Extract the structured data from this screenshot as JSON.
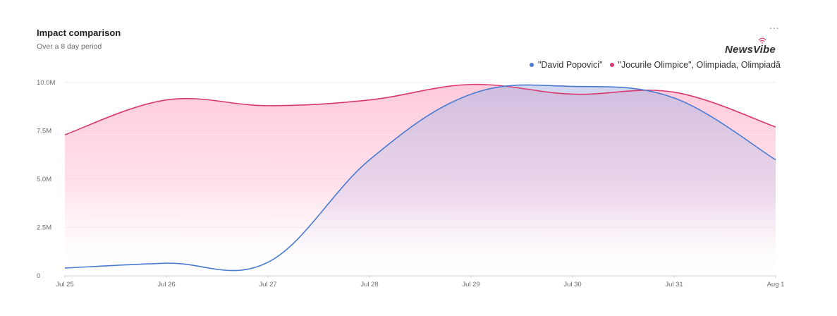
{
  "header": {
    "title": "Impact comparison",
    "subtitle": "Over a 8 day period",
    "more_label": "...",
    "logo_text": "NewsVibe"
  },
  "colors": {
    "series_1": "#4a7bd0",
    "series_2": "#d9386c"
  },
  "chart_data": {
    "type": "area",
    "title": "Impact comparison",
    "subtitle": "Over a 8 day period",
    "x": [
      "Jul 25",
      "Jul 26",
      "Jul 27",
      "Jul 28",
      "Jul 29",
      "Jul 30",
      "Jul 31",
      "Aug 1"
    ],
    "y_ticks": [
      "0",
      "2.5M",
      "5.0M",
      "7.5M",
      "10.0M"
    ],
    "ylim": [
      0,
      10000000
    ],
    "grid": true,
    "legend_position": "top-right",
    "series": [
      {
        "name": "\"David Popovici\"",
        "color": "#4a7bd0",
        "values": [
          400000,
          650000,
          700000,
          6000000,
          9400000,
          9800000,
          9200000,
          6000000
        ]
      },
      {
        "name": "\"Jocurile Olimpice\", Olimpiada, Olimpiadă",
        "color": "#d9386c",
        "values": [
          7300000,
          9100000,
          8800000,
          9100000,
          9900000,
          9400000,
          9500000,
          7700000
        ]
      }
    ]
  }
}
